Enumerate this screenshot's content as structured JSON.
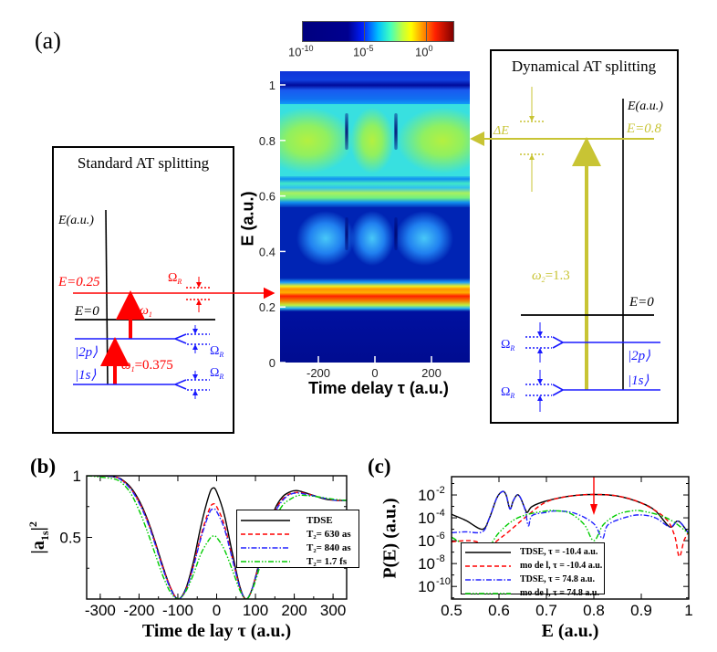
{
  "panel_a": {
    "label": "(a)",
    "colorbar": {
      "colormap": "jet",
      "scale": "log",
      "ticks": [
        {
          "base": "10",
          "exp": "-10"
        },
        {
          "base": "10",
          "exp": "-5"
        },
        {
          "base": "10",
          "exp": "0"
        }
      ]
    },
    "heatmap": {
      "ylabel": "E (a.u.)",
      "xlabel": "Time delay τ (a.u.)",
      "xticks": [
        "-200",
        "0",
        "200"
      ],
      "yticks": [
        "0",
        "0.2",
        "0.4",
        "0.6",
        "0.8",
        "1"
      ]
    },
    "standard": {
      "title": "Standard AT splitting",
      "axis_label": "E(a.u.)",
      "level_e025": "E=0.25",
      "level_e0": "E=0",
      "omega": "Ω",
      "omega_sub": "R",
      "w1": "ω",
      "w1_sub": "1",
      "w1_value": "=0.375",
      "ket_2p": "|2p⟩",
      "ket_1s": "|1s⟩",
      "colors": {
        "probe": "#ff0000",
        "states": "#1a1aff"
      }
    },
    "dynamical": {
      "title": "Dynamical AT splitting",
      "axis_label": "E(a.u.)",
      "level_e08": "E=0.8",
      "level_e0": "E=0",
      "delta_e": "ΔE",
      "w2": "ω",
      "w2_sub": "2",
      "w2_value": "=1.3",
      "omega": "Ω",
      "omega_sub": "R",
      "ket_2p": "|2p⟩",
      "ket_1s": "|1s⟩",
      "colors": {
        "pump": "#c8c434",
        "states": "#1a1aff"
      }
    }
  },
  "panel_b": {
    "label": "(b)"
  },
  "panel_c": {
    "label": "(c)"
  },
  "chart_data": [
    {
      "type": "line",
      "xlabel": "Time de lay τ (a.u.)",
      "ylabel": "|a1s|²",
      "ylabel_parts": {
        "main": "|a",
        "sub": "1s",
        "close": "|",
        "sup": "2"
      },
      "xlim": [
        -335,
        335
      ],
      "ylim": [
        0,
        1
      ],
      "xticks": [
        "-300",
        "-200",
        "-100",
        "0",
        "100",
        "200",
        "300"
      ],
      "yticks": [
        "0.5",
        "1"
      ],
      "legend": "right",
      "series": [
        {
          "name": "TDSE",
          "color": "#000000",
          "dash": "solid",
          "x": [
            -335,
            -300,
            -260,
            -240,
            -220,
            -200,
            -180,
            -160,
            -140,
            -120,
            -100,
            -80,
            -60,
            -40,
            -20,
            -10,
            0,
            20,
            40,
            60,
            75,
            90,
            110,
            130,
            150,
            170,
            190,
            205,
            220,
            250,
            280,
            310,
            335
          ],
          "y": [
            1.0,
            1.0,
            0.99,
            0.96,
            0.9,
            0.8,
            0.66,
            0.48,
            0.28,
            0.1,
            0.0,
            0.08,
            0.3,
            0.6,
            0.84,
            0.9,
            0.87,
            0.68,
            0.38,
            0.1,
            0.0,
            0.07,
            0.3,
            0.55,
            0.73,
            0.83,
            0.87,
            0.88,
            0.87,
            0.84,
            0.81,
            0.8,
            0.8
          ]
        },
        {
          "name": "T₂= 630 as",
          "color": "#ff0000",
          "dash": "dashed",
          "x": [
            -335,
            -300,
            -260,
            -240,
            -220,
            -200,
            -180,
            -160,
            -140,
            -120,
            -100,
            -80,
            -60,
            -40,
            -20,
            -10,
            0,
            20,
            40,
            60,
            75,
            90,
            110,
            130,
            150,
            170,
            190,
            210,
            230,
            260,
            290,
            310,
            335
          ],
          "y": [
            1.0,
            1.0,
            0.99,
            0.955,
            0.89,
            0.79,
            0.65,
            0.47,
            0.27,
            0.1,
            0.0,
            0.07,
            0.27,
            0.52,
            0.72,
            0.77,
            0.75,
            0.6,
            0.34,
            0.09,
            0.0,
            0.07,
            0.29,
            0.53,
            0.71,
            0.81,
            0.855,
            0.865,
            0.855,
            0.83,
            0.81,
            0.8,
            0.8
          ]
        },
        {
          "name": "T₂= 840 as",
          "color": "#2222ff",
          "dash": "dashdot",
          "x": [
            -335,
            -300,
            -260,
            -240,
            -220,
            -200,
            -180,
            -160,
            -140,
            -120,
            -100,
            -80,
            -60,
            -40,
            -20,
            -10,
            0,
            20,
            40,
            60,
            75,
            90,
            110,
            130,
            150,
            170,
            190,
            210,
            230,
            260,
            290,
            310,
            335
          ],
          "y": [
            1.0,
            1.0,
            0.99,
            0.95,
            0.885,
            0.78,
            0.64,
            0.46,
            0.26,
            0.09,
            0.0,
            0.07,
            0.26,
            0.5,
            0.69,
            0.73,
            0.71,
            0.57,
            0.33,
            0.09,
            0.0,
            0.07,
            0.28,
            0.52,
            0.7,
            0.8,
            0.85,
            0.86,
            0.85,
            0.83,
            0.81,
            0.8,
            0.8
          ]
        },
        {
          "name": "T₂= 1.7 fs",
          "color": "#00cc00",
          "dash": "dashdotdot",
          "x": [
            -335,
            -300,
            -260,
            -240,
            -220,
            -200,
            -180,
            -160,
            -140,
            -120,
            -100,
            -80,
            -60,
            -40,
            -20,
            -10,
            0,
            20,
            40,
            60,
            75,
            90,
            110,
            130,
            150,
            170,
            190,
            210,
            230,
            260,
            300,
            335
          ],
          "y": [
            1.0,
            0.99,
            0.97,
            0.93,
            0.85,
            0.72,
            0.56,
            0.38,
            0.2,
            0.06,
            0.0,
            0.06,
            0.2,
            0.37,
            0.48,
            0.51,
            0.5,
            0.4,
            0.24,
            0.07,
            0.0,
            0.06,
            0.25,
            0.48,
            0.65,
            0.76,
            0.81,
            0.84,
            0.84,
            0.83,
            0.81,
            0.8
          ]
        }
      ]
    },
    {
      "type": "line",
      "xlabel": "E (a.u.)",
      "ylabel": "P(E) (a.u.)",
      "xlim": [
        0.5,
        1.0
      ],
      "ylim": [
        7.9e-12,
        0.398
      ],
      "yscale": "log",
      "xticks": [
        "0.5",
        "0.6",
        "0.7",
        "0.8",
        "0.9",
        "1"
      ],
      "yticks": [
        {
          "base": "10",
          "exp": "-2"
        },
        {
          "base": "10",
          "exp": "-4"
        },
        {
          "base": "10",
          "exp": "-6"
        },
        {
          "base": "10",
          "exp": "-8"
        },
        {
          "base": "10",
          "exp": "-10"
        }
      ],
      "annotation": {
        "type": "arrow",
        "x": 0.8,
        "color": "#ff0000"
      },
      "legend": "bottom-left",
      "series": [
        {
          "name": "TDSE, τ = -10.4 a.u.",
          "color": "#000000",
          "dash": "solid",
          "x": [
            0.5,
            0.53,
            0.565,
            0.58,
            0.595,
            0.607,
            0.615,
            0.623,
            0.63,
            0.638,
            0.645,
            0.655,
            0.66,
            0.67,
            0.7,
            0.75,
            0.8,
            0.85,
            0.9,
            0.93,
            0.96,
            0.975,
            0.985,
            1.0
          ],
          "y": [
            0.0002,
            6e-05,
            1e-05,
            0.0001,
            0.005,
            0.02,
            0.01,
            0.0006,
            0.003,
            0.01,
            0.006,
            0.0006,
            0.0003,
            0.001,
            0.003,
            0.008,
            0.011,
            0.008,
            0.002,
            0.0004,
            1.6e-05,
            5e-05,
            3e-05,
            4e-06
          ]
        },
        {
          "name": "mo de l, τ = -10.4 a.u.",
          "color": "#ff0000",
          "dash": "dashed",
          "x": [
            0.5,
            0.54,
            0.565,
            0.578,
            0.59,
            0.62,
            0.66,
            0.7,
            0.75,
            0.8,
            0.85,
            0.9,
            0.95,
            0.97,
            0.98,
            0.99,
            1.0
          ],
          "y": [
            8e-07,
            1e-06,
            5e-07,
            1.5e-07,
            6e-07,
            6e-06,
            0.00016,
            0.0025,
            0.008,
            0.011,
            0.008,
            0.002,
            0.0001,
            3e-06,
            4e-08,
            1e-06,
            6e-06
          ]
        },
        {
          "name": "TDSE, τ = 74.8 a.u.",
          "color": "#2222ff",
          "dash": "dashdot",
          "x": [
            0.5,
            0.53,
            0.565,
            0.58,
            0.595,
            0.607,
            0.615,
            0.623,
            0.63,
            0.638,
            0.645,
            0.655,
            0.662,
            0.67,
            0.7,
            0.72,
            0.76,
            0.8,
            0.818,
            0.83,
            0.87,
            0.9,
            0.93,
            0.96,
            0.975,
            0.985,
            1.0
          ],
          "y": [
            5e-06,
            6e-06,
            6e-06,
            0.0001,
            0.005,
            0.02,
            0.01,
            0.0006,
            0.003,
            0.01,
            0.006,
            0.0005,
            2e-05,
            0.00016,
            0.0003,
            0.0004,
            0.00025,
            3e-05,
            1.6e-06,
            2.5e-05,
            0.00012,
            0.00018,
            0.0001,
            1.6e-05,
            5e-05,
            3e-05,
            4e-06
          ]
        },
        {
          "name": "mo de l, τ = 74.8 a.u.",
          "color": "#00cc00",
          "dash": "dashdotdot",
          "x": [
            0.5,
            0.54,
            0.57,
            0.6,
            0.63,
            0.66,
            0.7,
            0.72,
            0.75,
            0.78,
            0.8,
            0.82,
            0.85,
            0.88,
            0.9,
            0.94,
            0.97,
            1.0
          ],
          "y": [
            2e-06,
            2.5e-07,
            1.3e-07,
            5e-06,
            6e-05,
            0.0002,
            0.0004,
            0.00042,
            0.00025,
            2.5e-05,
            1e-06,
            2.5e-05,
            0.0002,
            0.0004,
            0.0004,
            0.00016,
            4e-05,
            4e-06
          ]
        }
      ]
    }
  ]
}
